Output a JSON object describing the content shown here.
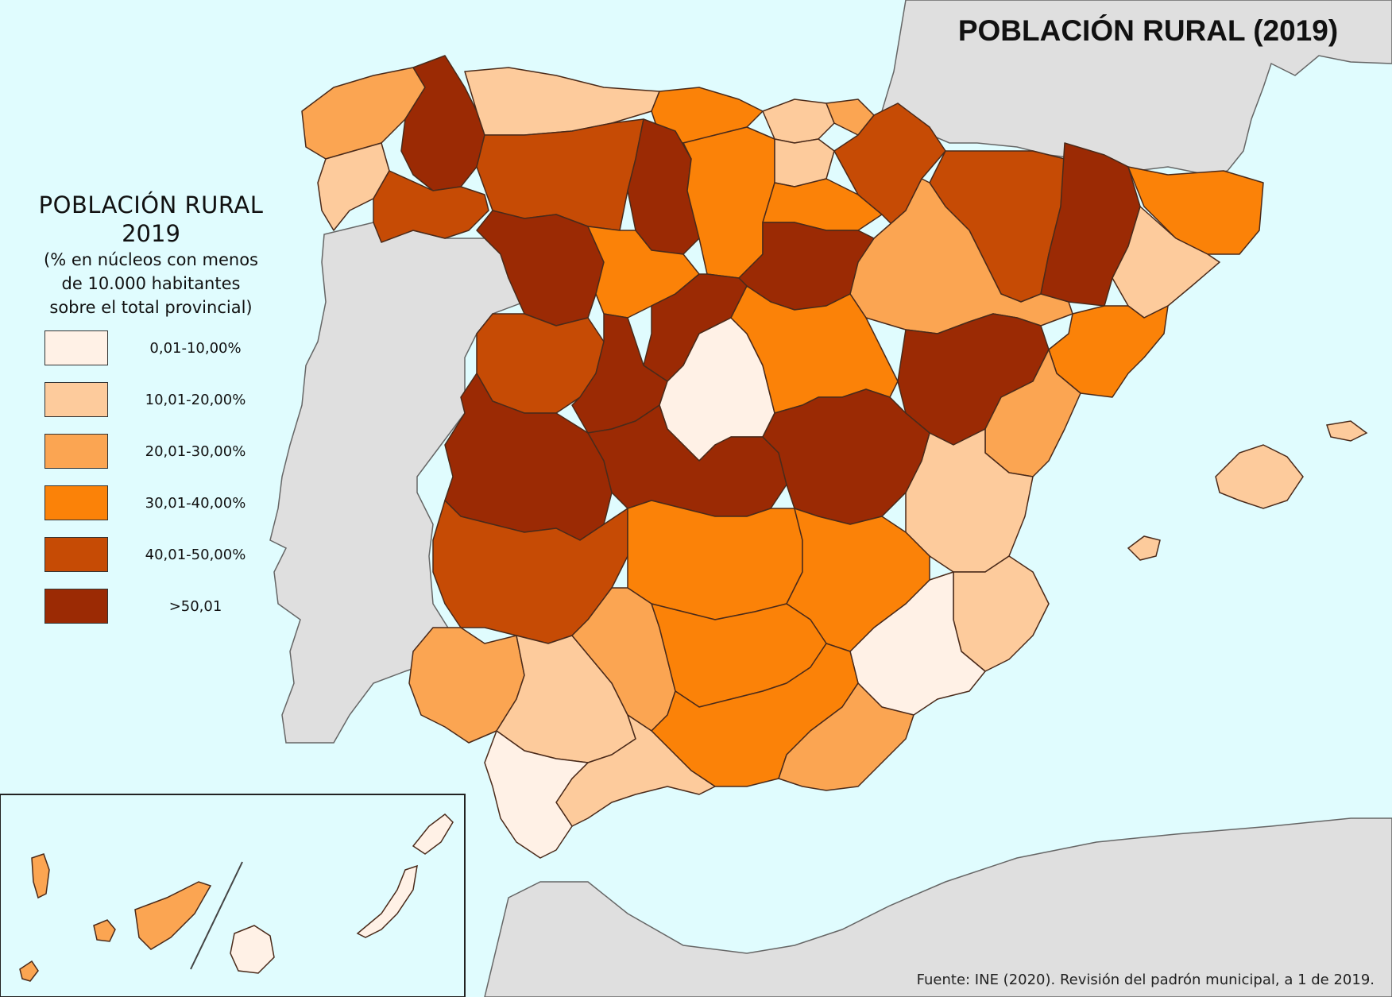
{
  "title": "POBLACIÓN RURAL (2019)",
  "legend": {
    "title": "POBLACIÓN RURAL",
    "year": "2019",
    "subtitle_lines": [
      "(% en núcleos con menos",
      "de 10.000 habitantes",
      "sobre el total provincial)"
    ],
    "classes": [
      {
        "label": "0,01-10,00%",
        "color": "#fff1e6"
      },
      {
        "label": "10,01-20,00%",
        "color": "#fdcb9c"
      },
      {
        "label": "20,01-30,00%",
        "color": "#fba552"
      },
      {
        "label": "30,01-40,00%",
        "color": "#fb8208"
      },
      {
        "label": ">50,01",
        "color": "#9b2a04"
      },
      {
        "label": "40,01-50,00%",
        "color": "#c64b05"
      }
    ]
  },
  "source": "Fuente: INE (2020). Revisión del padrón municipal, a 1 de 2019.",
  "colors": {
    "sea": "#e0fcfe",
    "land": "#dfdfdf",
    "borders": "#5a3a2a"
  }
}
